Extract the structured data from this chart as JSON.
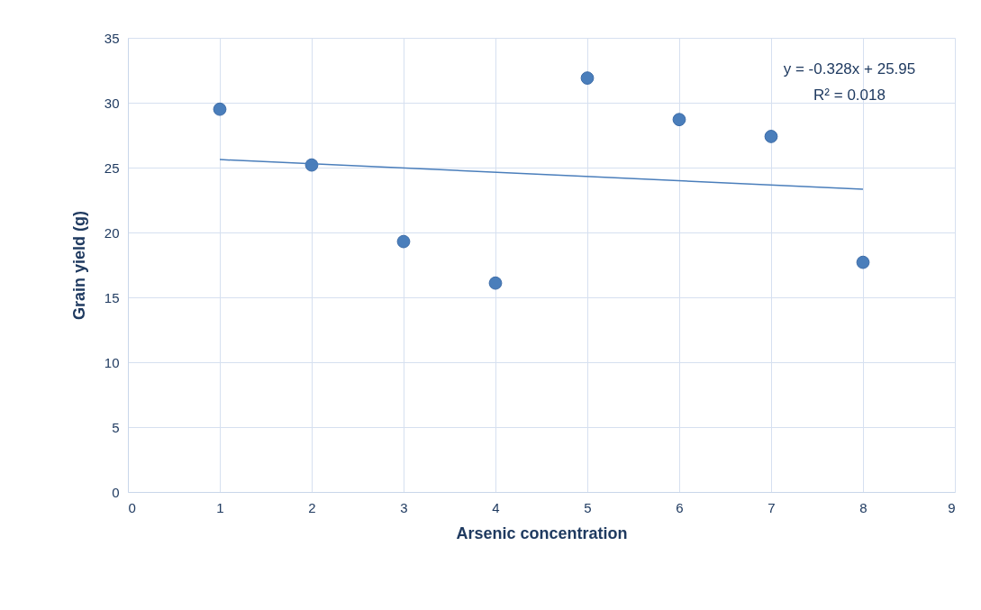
{
  "chart_data": {
    "type": "scatter",
    "xlabel": "Arsenic concentration",
    "ylabel": "Grain yield (g)",
    "series": [
      {
        "marker": "circle",
        "color": "#4a7ebb",
        "x": [
          1,
          2,
          3,
          4,
          5,
          6,
          7,
          8
        ],
        "values": [
          29.5,
          25.2,
          19.3,
          16.1,
          31.9,
          28.7,
          27.4,
          17.7
        ]
      },
      {
        "type": "line",
        "color": "#4a7ebb",
        "x": [
          1,
          8
        ],
        "values": [
          25.62,
          23.33
        ]
      }
    ],
    "xlim": [
      0,
      9
    ],
    "xticks": [
      0,
      1,
      2,
      3,
      4,
      5,
      6,
      7,
      8,
      9
    ],
    "ylim": [
      0,
      35
    ],
    "yticks": [
      0,
      5,
      10,
      15,
      20,
      25,
      30,
      35
    ],
    "grid": true,
    "annotations": [
      "y = -0.328x + 25.95",
      "R² = 0.018"
    ]
  }
}
